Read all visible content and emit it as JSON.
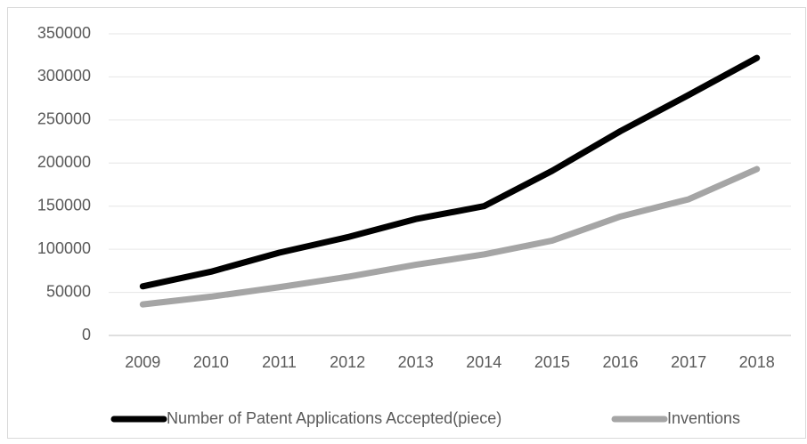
{
  "chart_data": {
    "type": "line",
    "categories": [
      "2009",
      "2010",
      "2011",
      "2012",
      "2013",
      "2014",
      "2015",
      "2016",
      "2017",
      "2018"
    ],
    "series": [
      {
        "name": "Number of Patent Applications Accepted(piece)",
        "color": "#000000",
        "values": [
          57000,
          74000,
          96000,
          114000,
          135000,
          150000,
          191000,
          237000,
          279000,
          322000
        ]
      },
      {
        "name": "Inventions",
        "color": "#a5a5a5",
        "values": [
          36000,
          45000,
          56000,
          68000,
          82000,
          94000,
          110000,
          138000,
          158000,
          193000
        ]
      }
    ],
    "ylim": [
      0,
      350000
    ],
    "yticks": [
      0,
      50000,
      100000,
      150000,
      200000,
      250000,
      300000,
      350000
    ],
    "grid": true,
    "legend": "bottom"
  }
}
